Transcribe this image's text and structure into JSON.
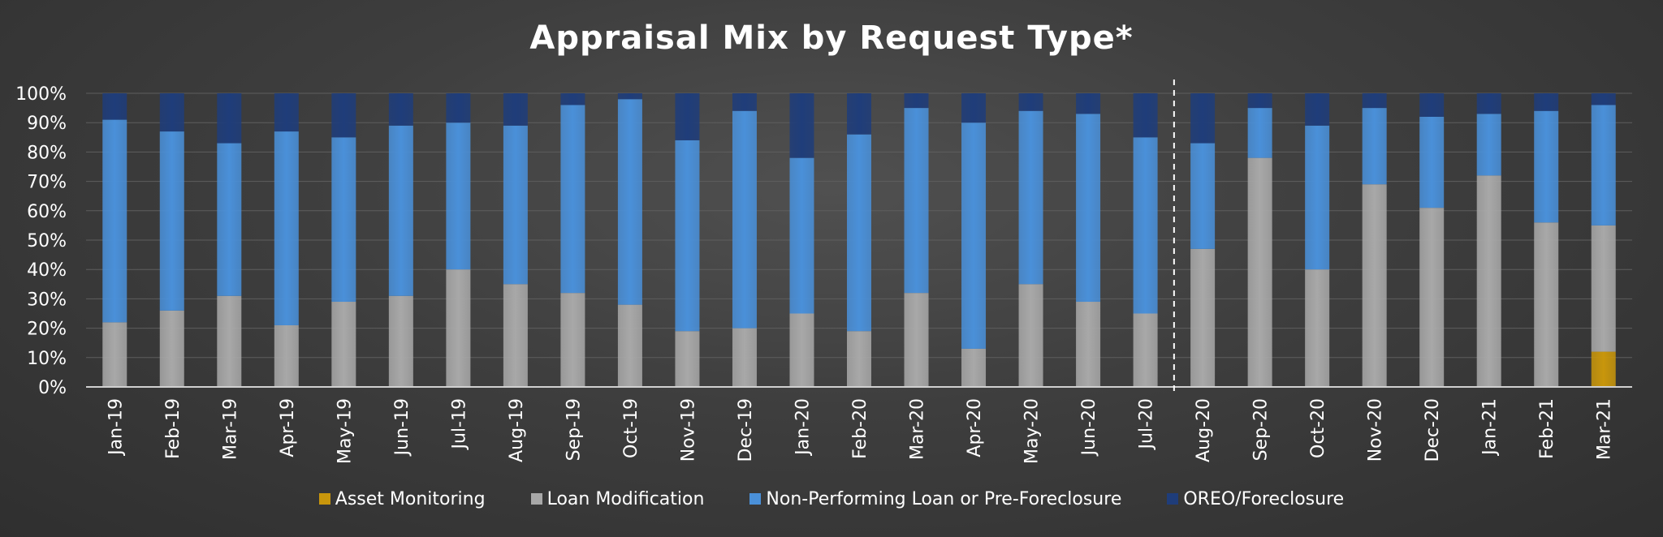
{
  "chart_data": {
    "type": "bar",
    "stacked": true,
    "title": "Appraisal Mix by Request Type*",
    "xlabel": "",
    "ylabel": "",
    "ylim": [
      0,
      100
    ],
    "yticks": [
      "0%",
      "10%",
      "20%",
      "30%",
      "40%",
      "50%",
      "60%",
      "70%",
      "80%",
      "90%",
      "100%"
    ],
    "grid": true,
    "legend_position": "bottom",
    "divider_after_category": "Jul-20",
    "categories": [
      "Jan-19",
      "Feb-19",
      "Mar-19",
      "Apr-19",
      "May-19",
      "Jun-19",
      "Jul-19",
      "Aug-19",
      "Sep-19",
      "Oct-19",
      "Nov-19",
      "Dec-19",
      "Jan-20",
      "Feb-20",
      "Mar-20",
      "Apr-20",
      "May-20",
      "Jun-20",
      "Jul-20",
      "Aug-20",
      "Sep-20",
      "Oct-20",
      "Nov-20",
      "Dec-20",
      "Jan-21",
      "Feb-21",
      "Mar-21"
    ],
    "series": [
      {
        "name": "Asset Monitoring",
        "color": "#c8960c",
        "values": [
          0,
          0,
          0,
          0,
          0,
          0,
          0,
          0,
          0,
          0,
          0,
          0,
          0,
          0,
          0,
          0,
          0,
          0,
          0,
          0,
          0,
          0,
          0,
          0,
          0,
          0,
          12
        ]
      },
      {
        "name": "Loan Modification",
        "color": "#a8a8a8",
        "values": [
          22,
          26,
          31,
          21,
          29,
          31,
          40,
          35,
          32,
          28,
          19,
          20,
          25,
          19,
          32,
          13,
          35,
          29,
          25,
          47,
          78,
          40,
          69,
          61,
          72,
          56,
          43
        ]
      },
      {
        "name": "Non-Performing Loan or Pre-Foreclosure",
        "color": "#4a90d9",
        "values": [
          69,
          61,
          52,
          66,
          56,
          58,
          50,
          54,
          64,
          70,
          65,
          74,
          53,
          67,
          63,
          77,
          59,
          64,
          60,
          36,
          17,
          49,
          26,
          31,
          21,
          38,
          41
        ]
      },
      {
        "name": "OREO/Foreclosure",
        "color": "#1f3d7a",
        "values": [
          9,
          13,
          17,
          13,
          15,
          11,
          10,
          11,
          4,
          2,
          16,
          6,
          22,
          14,
          5,
          10,
          6,
          7,
          15,
          17,
          5,
          11,
          5,
          8,
          7,
          6,
          4
        ]
      }
    ]
  }
}
